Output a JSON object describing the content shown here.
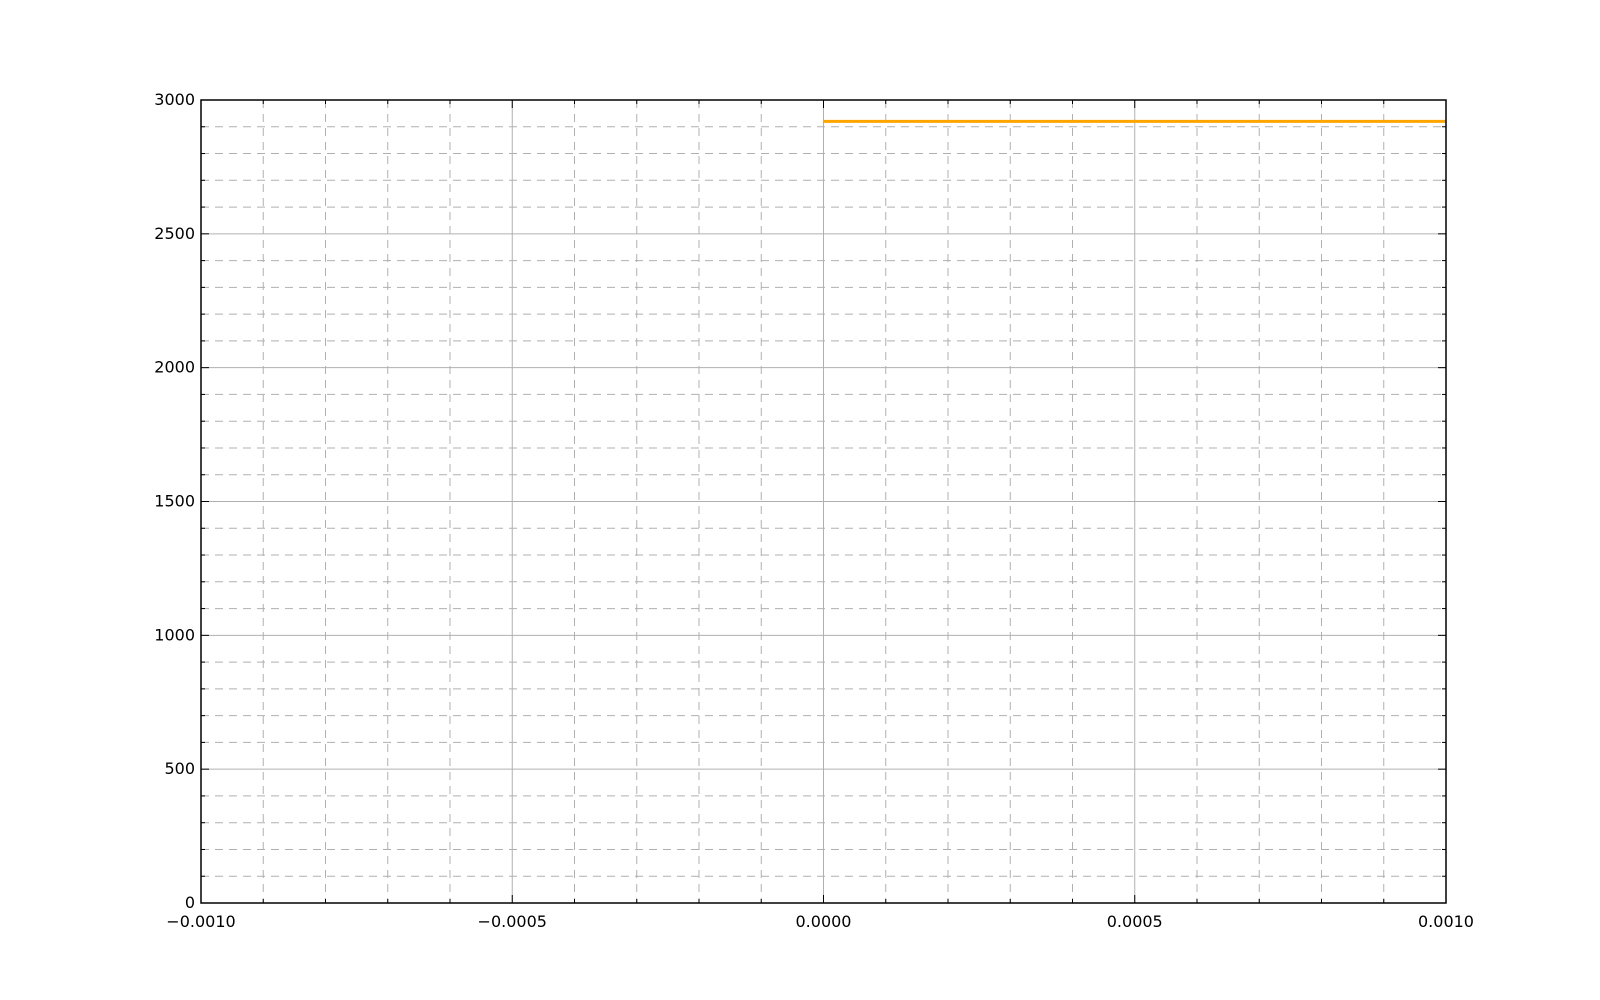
{
  "chart_data": {
    "type": "line",
    "title": "",
    "xlabel": "",
    "ylabel": "",
    "xlim": [
      -0.001,
      0.001
    ],
    "ylim": [
      0,
      3000
    ],
    "grid": true,
    "minor_grid": true,
    "x_ticks": [
      -0.001,
      -0.0005,
      0.0,
      0.0005,
      0.001
    ],
    "x_tick_labels": [
      "−0.0010",
      "−0.0005",
      "0.0000",
      "0.0005",
      "0.0010"
    ],
    "x_minor_ticks": [
      -0.0009,
      -0.0008,
      -0.0007,
      -0.0006,
      -0.0004,
      -0.0003,
      -0.0002,
      -0.0001,
      0.0001,
      0.0002,
      0.0003,
      0.0004,
      0.0006,
      0.0007,
      0.0008,
      0.0009
    ],
    "y_ticks": [
      0,
      500,
      1000,
      1500,
      2000,
      2500,
      3000
    ],
    "y_tick_labels": [
      "0",
      "500",
      "1000",
      "1500",
      "2000",
      "2500",
      "3000"
    ],
    "y_minor_ticks": [
      100,
      200,
      300,
      400,
      600,
      700,
      800,
      900,
      1100,
      1200,
      1300,
      1400,
      1600,
      1700,
      1800,
      1900,
      2100,
      2200,
      2300,
      2400,
      2600,
      2700,
      2800,
      2900
    ],
    "series": [
      {
        "color": "#ffa500",
        "x": [
          0.0,
          0.001
        ],
        "y": [
          2920,
          2920
        ]
      }
    ]
  }
}
